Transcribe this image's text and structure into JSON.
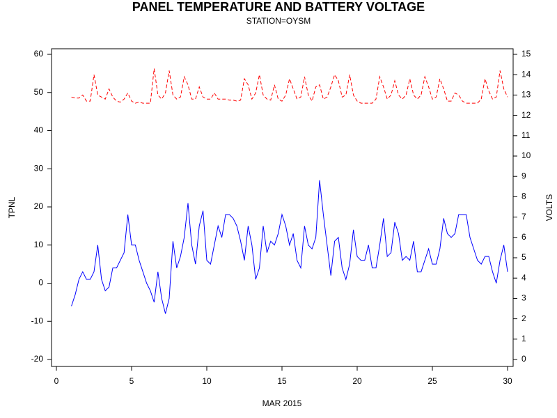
{
  "chart_data": {
    "type": "line",
    "title": "PANEL TEMPERATURE AND BATTERY VOLTAGE",
    "subtitle": "STATION=OYSM",
    "xlabel": "MAR 2015",
    "ylabel": "TPNL",
    "y2label": "VOLTS",
    "xlim": [
      0,
      30
    ],
    "xticks": [
      0,
      5,
      10,
      15,
      20,
      25,
      30
    ],
    "ylim": [
      -20,
      60
    ],
    "yticks": [
      -20,
      -10,
      0,
      10,
      20,
      30,
      40,
      50,
      60
    ],
    "y2lim": [
      0,
      15
    ],
    "y2ticks": [
      0,
      1,
      2,
      3,
      4,
      5,
      6,
      7,
      8,
      9,
      10,
      11,
      12,
      13,
      14,
      15
    ],
    "x": [
      1,
      1.25,
      1.5,
      1.75,
      2,
      2.25,
      2.5,
      2.75,
      3,
      3.25,
      3.5,
      3.75,
      4,
      4.25,
      4.5,
      4.75,
      5,
      5.25,
      5.5,
      5.75,
      6,
      6.25,
      6.5,
      6.75,
      7,
      7.25,
      7.5,
      7.75,
      8,
      8.25,
      8.5,
      8.75,
      9,
      9.25,
      9.5,
      9.75,
      10,
      10.25,
      10.5,
      10.75,
      11,
      11.25,
      11.5,
      11.75,
      12,
      12.25,
      12.5,
      12.75,
      13,
      13.25,
      13.5,
      13.75,
      14,
      14.25,
      14.5,
      14.75,
      15,
      15.25,
      15.5,
      15.75,
      16,
      16.25,
      16.5,
      16.75,
      17,
      17.25,
      17.5,
      17.75,
      18,
      18.25,
      18.5,
      18.75,
      19,
      19.25,
      19.5,
      19.75,
      20,
      20.25,
      20.5,
      20.75,
      21,
      21.25,
      21.5,
      21.75,
      22,
      22.25,
      22.5,
      22.75,
      23,
      23.25,
      23.5,
      23.75,
      24,
      24.25,
      24.5,
      24.75,
      25,
      25.25,
      25.5,
      25.75,
      26,
      26.25,
      26.5,
      26.75,
      27,
      27.25,
      27.5,
      27.75,
      28,
      28.25,
      28.5,
      28.75,
      29,
      29.25,
      29.5,
      29.75,
      30
    ],
    "series": [
      {
        "name": "TPNL",
        "color": "#0000ff",
        "dashed": false,
        "values": [
          -6,
          -3,
          1,
          3,
          1,
          1,
          3,
          10,
          1,
          -2,
          -1,
          4,
          4,
          6,
          8,
          18,
          10,
          10,
          6,
          3,
          0,
          -2,
          -5,
          3,
          -4,
          -8,
          -4,
          11,
          4,
          7,
          12,
          21,
          10,
          5,
          15,
          19,
          6,
          5,
          10,
          15,
          12,
          18,
          18,
          17,
          15,
          11,
          6,
          15,
          10,
          1,
          4,
          15,
          8,
          11,
          10,
          13,
          18,
          15,
          10,
          13,
          6,
          4,
          15,
          10,
          9,
          12,
          27,
          18,
          10,
          2,
          11,
          12,
          4,
          1,
          5,
          14,
          7,
          6,
          6,
          10,
          4,
          4,
          10,
          17,
          7,
          8,
          16,
          13,
          6,
          7,
          6,
          11,
          3,
          3,
          6,
          9,
          5,
          5,
          9,
          17,
          13,
          12,
          13,
          18,
          18,
          18,
          12,
          9,
          6,
          5,
          7,
          7,
          3,
          0,
          6,
          10,
          3
        ]
      },
      {
        "name": "VOLTS",
        "color": "#ff0000",
        "dashed": true,
        "axis": "y2",
        "values": [
          12.9,
          12.85,
          12.85,
          13.0,
          12.7,
          12.7,
          14.0,
          13.0,
          12.9,
          12.8,
          13.3,
          12.9,
          12.7,
          12.65,
          12.8,
          13.1,
          12.7,
          12.6,
          12.65,
          12.6,
          12.6,
          12.6,
          14.3,
          13.0,
          12.8,
          13.1,
          14.2,
          13.0,
          12.8,
          12.9,
          13.9,
          13.5,
          12.8,
          12.8,
          13.4,
          12.9,
          12.8,
          12.8,
          13.1,
          12.8,
          12.8,
          12.8,
          12.75,
          12.75,
          12.7,
          12.75,
          13.8,
          13.5,
          12.8,
          13.1,
          14.0,
          13.0,
          12.8,
          12.75,
          13.5,
          12.8,
          12.7,
          13.0,
          13.8,
          13.3,
          12.8,
          12.9,
          13.9,
          13.0,
          12.7,
          13.4,
          13.5,
          12.8,
          12.9,
          13.4,
          14.0,
          13.7,
          12.9,
          13.0,
          14.0,
          13.0,
          12.7,
          12.6,
          12.6,
          12.6,
          12.6,
          12.8,
          13.9,
          13.4,
          12.8,
          13.0,
          13.7,
          13.0,
          12.8,
          13.0,
          13.8,
          13.0,
          12.8,
          13.0,
          13.9,
          13.4,
          12.8,
          12.9,
          13.8,
          13.3,
          12.7,
          12.7,
          13.1,
          13.0,
          12.7,
          12.6,
          12.6,
          12.6,
          12.6,
          12.8,
          13.8,
          13.2,
          12.8,
          12.9,
          14.2,
          13.3,
          12.9
        ]
      }
    ]
  }
}
